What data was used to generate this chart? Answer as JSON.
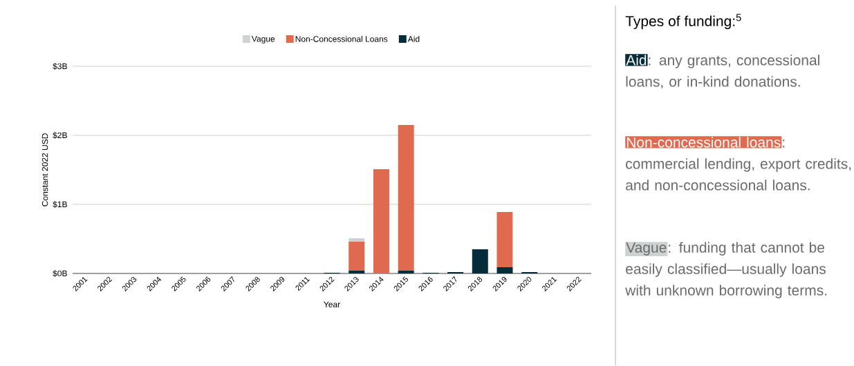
{
  "chart_data": {
    "type": "bar",
    "stacked": true,
    "categories": [
      "2001",
      "2002",
      "2003",
      "2004",
      "2005",
      "2006",
      "2007",
      "2008",
      "2009",
      "2011",
      "2012",
      "2013",
      "2014",
      "2015",
      "2016",
      "2017",
      "2018",
      "2019",
      "2020",
      "2021",
      "2022"
    ],
    "series": [
      {
        "name": "Aid",
        "color": "#052c3a",
        "values": [
          0,
          0,
          0,
          0,
          0,
          0,
          0,
          0,
          0,
          0,
          0.01,
          0.04,
          0,
          0.04,
          0.01,
          0.02,
          0.35,
          0.09,
          0.02,
          0,
          0
        ]
      },
      {
        "name": "Non-Concessional Loans",
        "color": "#e06a50",
        "values": [
          0,
          0,
          0,
          0,
          0,
          0,
          0,
          0,
          0,
          0,
          0,
          0.42,
          1.51,
          2.11,
          0,
          0,
          0,
          0.8,
          0,
          0,
          0
        ]
      },
      {
        "name": "Vague",
        "color": "#cdd3d3",
        "values": [
          0,
          0,
          0,
          0,
          0,
          0,
          0,
          0,
          0,
          0,
          0,
          0.05,
          0,
          0,
          0,
          0,
          0,
          0,
          0,
          0,
          0
        ]
      }
    ],
    "xlabel": "Year",
    "ylabel": "Constant 2022 USD",
    "ylim": [
      0,
      3
    ],
    "yticks": [
      {
        "value": 0,
        "label": "$0B"
      },
      {
        "value": 1,
        "label": "$1B"
      },
      {
        "value": 2,
        "label": "$2B"
      },
      {
        "value": 3,
        "label": "$3B"
      }
    ],
    "grid": "y",
    "legend": "top",
    "annotations": [
      "Types of funding:$^{5}$",
      "Aid",
      ": any grants, concessional loans, or in-kind donations.",
      "Non-concessional loans",
      ": commercial lending, export credits, and non-concessional loans.",
      "Vague",
      ": funding that cannot be easily classified—usually loans with unknown borrowing terms."
    ]
  }
}
